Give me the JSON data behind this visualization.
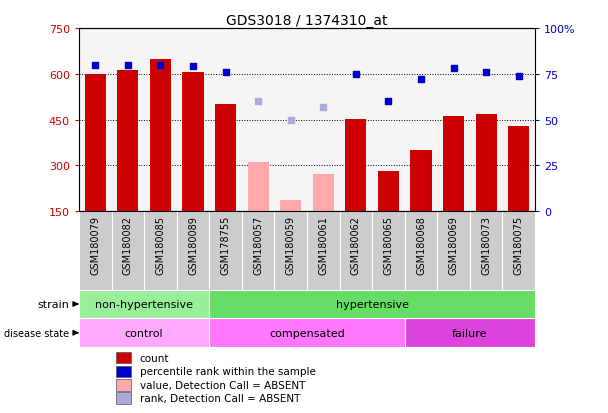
{
  "title": "GDS3018 / 1374310_at",
  "samples": [
    "GSM180079",
    "GSM180082",
    "GSM180085",
    "GSM180089",
    "GSM178755",
    "GSM180057",
    "GSM180059",
    "GSM180061",
    "GSM180062",
    "GSM180065",
    "GSM180068",
    "GSM180069",
    "GSM180073",
    "GSM180075"
  ],
  "count_values": [
    600,
    612,
    648,
    605,
    500,
    null,
    null,
    null,
    453,
    280,
    350,
    460,
    468,
    430
  ],
  "count_absent": [
    null,
    null,
    null,
    null,
    null,
    310,
    185,
    270,
    null,
    null,
    null,
    null,
    null,
    null
  ],
  "percentile_values": [
    80,
    80,
    80,
    79,
    76,
    null,
    null,
    null,
    75,
    60,
    72,
    78,
    76,
    74
  ],
  "percentile_absent": [
    null,
    null,
    null,
    null,
    null,
    60,
    50,
    57,
    null,
    null,
    null,
    null,
    null,
    null
  ],
  "ylim_left": [
    150,
    750
  ],
  "ylim_right": [
    0,
    100
  ],
  "yticks_left": [
    150,
    300,
    450,
    600,
    750
  ],
  "yticks_right": [
    0,
    25,
    50,
    75,
    100
  ],
  "bar_color_present": "#cc0000",
  "bar_color_absent": "#ffaaaa",
  "dot_color_present": "#0000cc",
  "dot_color_absent": "#aaaadd",
  "strain_groups": [
    {
      "label": "non-hypertensive",
      "start": 0,
      "end": 4,
      "color": "#99ee99"
    },
    {
      "label": "hypertensive",
      "start": 4,
      "end": 14,
      "color": "#66dd66"
    }
  ],
  "disease_groups": [
    {
      "label": "control",
      "start": 0,
      "end": 4,
      "color": "#ffaaff"
    },
    {
      "label": "compensated",
      "start": 4,
      "end": 10,
      "color": "#ff77ff"
    },
    {
      "label": "failure",
      "start": 10,
      "end": 14,
      "color": "#dd44dd"
    }
  ],
  "legend_items": [
    {
      "label": "count",
      "color": "#cc0000"
    },
    {
      "label": "percentile rank within the sample",
      "color": "#0000cc"
    },
    {
      "label": "value, Detection Call = ABSENT",
      "color": "#ffaaaa"
    },
    {
      "label": "rank, Detection Call = ABSENT",
      "color": "#aaaadd"
    }
  ],
  "background_color": "#ffffff",
  "tick_label_bg": "#cccccc",
  "height_ratios": [
    7,
    3,
    1.1,
    1.1,
    2.2
  ]
}
